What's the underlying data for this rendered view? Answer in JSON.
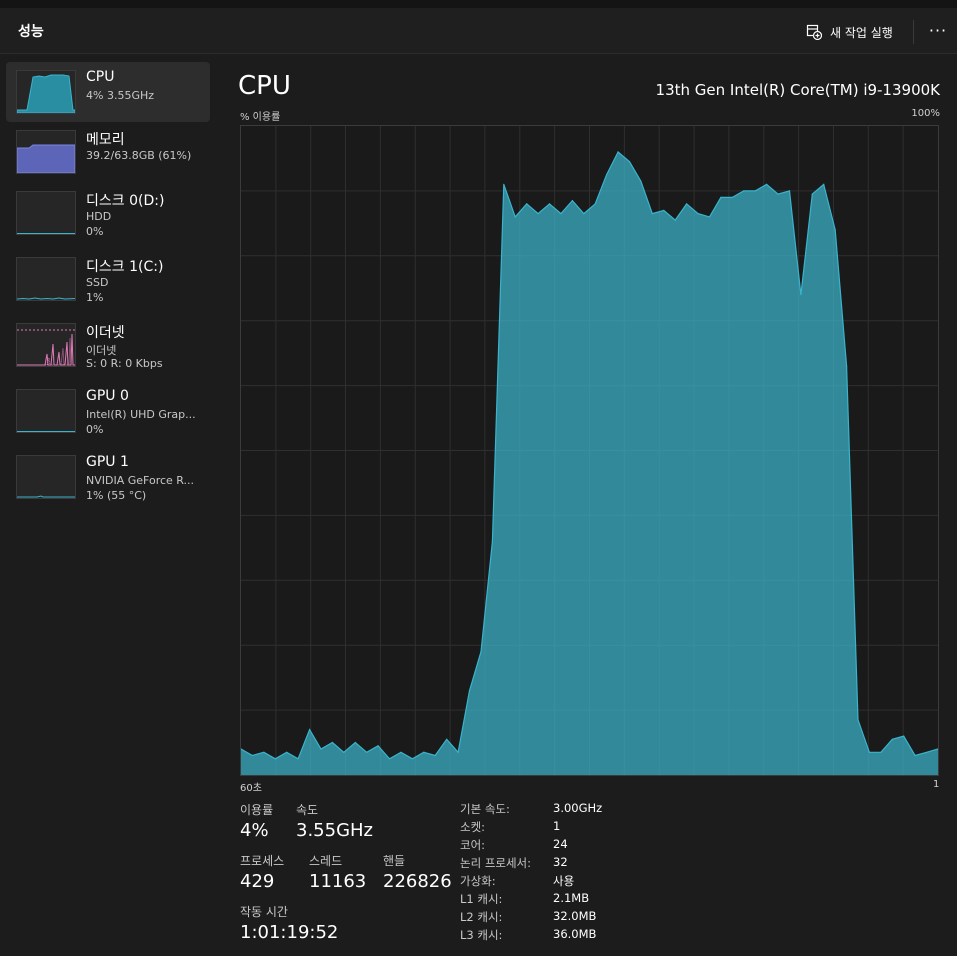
{
  "header": {
    "title": "성능",
    "new_task_label": "새 작업 실행",
    "more_label": "···"
  },
  "colors": {
    "cpu": "#3ab4cc",
    "memory": "#7b86e0",
    "disk": "#3ab4cc",
    "ethernet": "#e07ab8",
    "gpu": "#3ab4cc"
  },
  "sidebar": {
    "items": [
      {
        "name": "CPU",
        "line1": "4% 3.55GHz",
        "line2": ""
      },
      {
        "name": "메모리",
        "line1": "39.2/63.8GB (61%)",
        "line2": ""
      },
      {
        "name": "디스크 0(D:)",
        "line1": "HDD",
        "line2": "0%"
      },
      {
        "name": "디스크 1(C:)",
        "line1": "SSD",
        "line2": "1%"
      },
      {
        "name": "이더넷",
        "line1": "이더넷",
        "line2": "S: 0 R: 0 Kbps"
      },
      {
        "name": "GPU 0",
        "line1": "Intel(R) UHD Grap...",
        "line2": "0%"
      },
      {
        "name": "GPU 1",
        "line1": "NVIDIA GeForce R...",
        "line2": "1% (55 °C)"
      }
    ]
  },
  "main": {
    "title": "CPU",
    "model": "13th Gen Intel(R) Core(TM) i9-13900K",
    "y_label": "% 이용률",
    "y_max_label": "100%",
    "x_left_label": "60초",
    "x_right_label": "1"
  },
  "chart_data": {
    "type": "area",
    "ylim": [
      0,
      100
    ],
    "values": [
      4,
      3,
      3.5,
      2.5,
      3.5,
      2.5,
      7,
      4,
      5,
      3.5,
      5,
      3.5,
      4.5,
      2.5,
      3.5,
      2.5,
      3.5,
      3,
      5.5,
      3.5,
      13,
      19,
      36,
      91,
      86,
      88,
      86.5,
      88,
      86.5,
      88.5,
      86.5,
      88,
      92.5,
      96,
      94.5,
      91.5,
      86.5,
      87,
      85.5,
      88,
      86.5,
      86,
      89,
      89,
      90,
      90,
      91,
      89.5,
      90,
      74,
      89.5,
      91,
      84,
      63,
      8.5,
      3.5,
      3.5,
      5.5,
      6,
      3,
      3.5,
      4
    ]
  },
  "stats": {
    "utilization_label": "이용률",
    "utilization": "4%",
    "speed_label": "속도",
    "speed": "3.55GHz",
    "processes_label": "프로세스",
    "processes": "429",
    "threads_label": "스레드",
    "threads": "11163",
    "handles_label": "핸들",
    "handles": "226826",
    "uptime_label": "작동 시간",
    "uptime": "1:01:19:52"
  },
  "specs": [
    {
      "key": "기본 속도:",
      "value": "3.00GHz"
    },
    {
      "key": "소켓:",
      "value": "1"
    },
    {
      "key": "코어:",
      "value": "24"
    },
    {
      "key": "논리 프로세서:",
      "value": "32"
    },
    {
      "key": "가상화:",
      "value": "사용"
    },
    {
      "key": "L1 캐시:",
      "value": "2.1MB"
    },
    {
      "key": "L2 캐시:",
      "value": "32.0MB"
    },
    {
      "key": "L3 캐시:",
      "value": "36.0MB"
    }
  ]
}
